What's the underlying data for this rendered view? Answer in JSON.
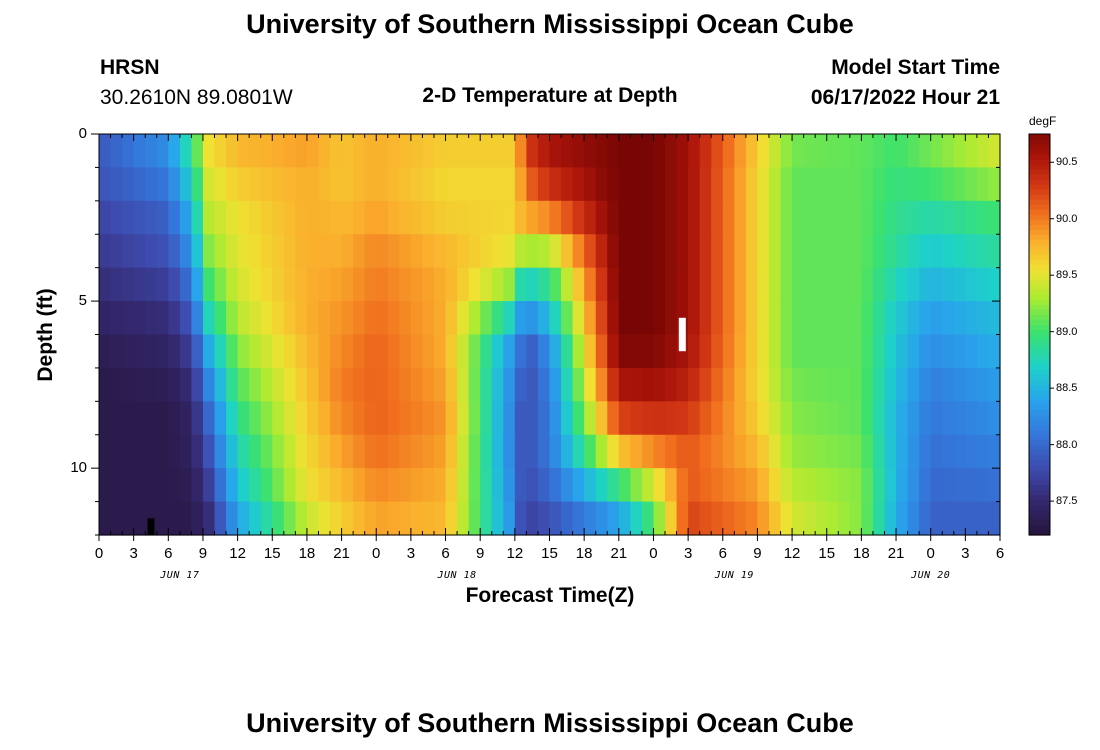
{
  "titles": {
    "top": "University of Southern Mississippi Ocean Cube",
    "bottom": "University of Southern Mississippi Ocean Cube"
  },
  "header": {
    "station": "HRSN",
    "coords": "30.2610N  89.0801W",
    "chart_title": "2-D Temperature at Depth",
    "model_label": "Model Start Time",
    "model_time": "06/17/2022 Hour 21"
  },
  "colorbar": {
    "unit": "degF",
    "ticks": [
      "90.5",
      "90.0",
      "89.5",
      "89.0",
      "88.5",
      "88.0",
      "87.5"
    ],
    "tick_values": [
      90.5,
      90.0,
      89.5,
      89.0,
      88.5,
      88.0,
      87.5
    ],
    "range": [
      87.2,
      90.75
    ]
  },
  "chart_data": {
    "type": "heatmap",
    "title": "2-D Temperature at Depth",
    "xlabel": "Forecast Time(Z)",
    "ylabel": "Depth (ft)",
    "x_tick_labels": [
      "0",
      "3",
      "6",
      "9",
      "12",
      "15",
      "18",
      "21",
      "0",
      "3",
      "6",
      "9",
      "12",
      "15",
      "18",
      "21",
      "0",
      "3",
      "6",
      "9",
      "12",
      "15",
      "18",
      "21",
      "0",
      "3",
      "6"
    ],
    "date_labels": [
      "JUN 17",
      "JUN 18",
      "JUN 19",
      "JUN 20"
    ],
    "y_tick_labels": [
      "0",
      "5",
      "10"
    ],
    "xlim_hours": [
      0,
      78
    ],
    "ylim_ft": [
      0,
      12
    ],
    "x_hours": [
      0,
      6,
      8,
      9.5,
      12,
      18,
      21,
      24,
      30,
      36,
      36.5,
      37.5,
      39,
      45,
      48,
      51,
      57,
      60,
      66,
      69,
      72,
      78
    ],
    "depth_levels_ft": [
      0,
      1,
      2,
      3,
      4,
      5,
      6,
      7,
      8,
      9,
      10,
      11,
      12
    ],
    "value_unit": "degF",
    "values": [
      [
        87.9,
        88.3,
        89.0,
        89.6,
        89.8,
        89.9,
        89.7,
        89.8,
        89.7,
        89.7,
        90.0,
        90.4,
        90.6,
        90.8,
        90.8,
        90.6,
        89.7,
        89.2,
        89.1,
        89.0,
        89.2,
        89.5
      ],
      [
        87.9,
        88.2,
        88.8,
        89.5,
        89.7,
        89.8,
        89.7,
        89.8,
        89.6,
        89.6,
        89.9,
        90.3,
        90.5,
        90.8,
        90.8,
        90.6,
        89.6,
        89.1,
        89.1,
        89.0,
        89.1,
        89.4
      ],
      [
        87.8,
        88.0,
        88.6,
        89.4,
        89.6,
        89.8,
        89.7,
        89.8,
        89.6,
        89.6,
        89.8,
        90.0,
        90.2,
        90.8,
        90.8,
        90.6,
        89.6,
        89.1,
        89.1,
        88.9,
        88.9,
        89.1
      ],
      [
        87.7,
        87.9,
        88.4,
        89.3,
        89.5,
        89.8,
        89.8,
        89.9,
        89.7,
        89.6,
        89.7,
        89.7,
        89.7,
        90.8,
        90.8,
        90.6,
        89.6,
        89.1,
        89.1,
        88.9,
        88.7,
        88.9
      ],
      [
        87.6,
        87.8,
        88.2,
        89.1,
        89.5,
        89.8,
        89.8,
        90.0,
        89.8,
        89.4,
        89.0,
        88.9,
        89.0,
        90.8,
        90.8,
        90.6,
        89.6,
        89.1,
        89.1,
        88.8,
        88.6,
        88.8
      ],
      [
        87.5,
        87.6,
        88.0,
        88.9,
        89.4,
        89.8,
        89.9,
        90.0,
        89.8,
        89.0,
        88.6,
        88.6,
        88.8,
        90.8,
        90.8,
        90.6,
        89.6,
        89.1,
        89.1,
        88.7,
        88.4,
        88.6
      ],
      [
        87.4,
        87.5,
        87.8,
        88.6,
        89.3,
        89.8,
        89.9,
        90.1,
        89.8,
        88.3,
        88.1,
        88.0,
        88.3,
        90.8,
        90.8,
        90.6,
        89.6,
        89.1,
        89.1,
        88.6,
        88.3,
        88.5
      ],
      [
        87.3,
        87.4,
        87.6,
        88.3,
        89.1,
        89.7,
        90.0,
        90.1,
        89.8,
        88.2,
        88.0,
        87.9,
        88.2,
        90.7,
        90.7,
        90.5,
        89.6,
        89.1,
        89.1,
        88.6,
        88.2,
        88.4
      ],
      [
        87.3,
        87.3,
        87.5,
        88.1,
        89.0,
        89.7,
        90.0,
        90.1,
        89.9,
        88.1,
        87.9,
        87.9,
        88.1,
        90.4,
        90.5,
        90.4,
        89.6,
        89.2,
        89.1,
        88.5,
        88.1,
        88.3
      ],
      [
        87.3,
        87.3,
        87.4,
        87.9,
        88.8,
        89.6,
        89.9,
        90.1,
        89.9,
        88.1,
        87.9,
        87.9,
        88.1,
        90.1,
        90.2,
        90.2,
        89.7,
        89.2,
        89.1,
        88.5,
        88.1,
        88.2
      ],
      [
        87.3,
        87.3,
        87.4,
        87.8,
        88.7,
        89.6,
        89.8,
        90.0,
        89.8,
        88.1,
        87.9,
        87.9,
        88.1,
        89.3,
        89.7,
        90.1,
        89.8,
        89.3,
        89.2,
        88.5,
        88.0,
        88.1
      ],
      [
        87.3,
        87.3,
        87.3,
        87.6,
        88.5,
        89.5,
        89.7,
        89.9,
        89.8,
        88.2,
        87.9,
        87.8,
        87.9,
        88.6,
        89.2,
        90.2,
        89.9,
        89.4,
        89.2,
        88.5,
        88.0,
        88.0
      ],
      [
        87.3,
        87.3,
        87.3,
        87.5,
        88.3,
        89.3,
        89.6,
        89.8,
        89.7,
        88.2,
        87.8,
        87.7,
        87.8,
        88.2,
        88.9,
        90.3,
        90.0,
        89.5,
        89.2,
        88.4,
        87.9,
        87.9
      ]
    ],
    "markers": [
      {
        "name": "min-marker",
        "x_hours": 4.5,
        "depth_ft_from": 11.5,
        "depth_ft_to": 12,
        "color": "#000000"
      },
      {
        "name": "max-marker",
        "x_hours": 50.5,
        "depth_ft_from": 5.5,
        "depth_ft_to": 6.5,
        "color": "#ffffff"
      }
    ]
  }
}
